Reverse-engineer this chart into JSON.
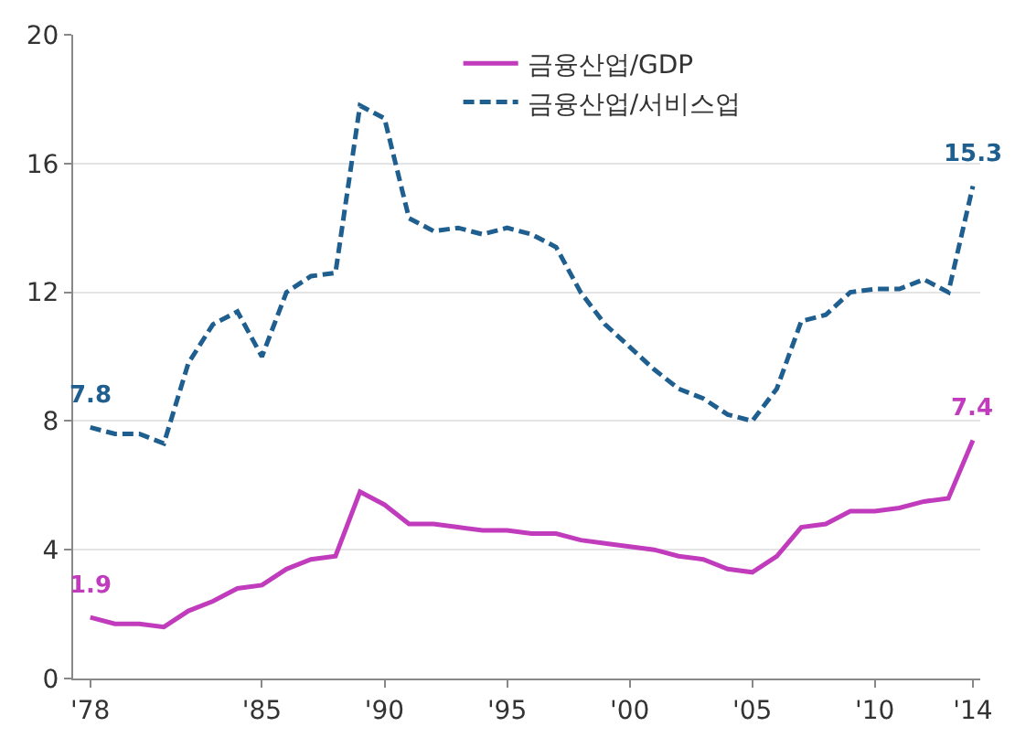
{
  "chart_data": {
    "type": "line",
    "x": [
      1978,
      1979,
      1980,
      1981,
      1982,
      1983,
      1984,
      1985,
      1986,
      1987,
      1988,
      1989,
      1990,
      1991,
      1992,
      1993,
      1994,
      1995,
      1996,
      1997,
      1998,
      1999,
      2000,
      2001,
      2002,
      2003,
      2004,
      2005,
      2006,
      2007,
      2008,
      2009,
      2010,
      2011,
      2012,
      2013,
      2014
    ],
    "series": [
      {
        "name": "금융산업/GDP",
        "color": "#c03cbc",
        "line_style": "solid",
        "values": [
          1.9,
          1.7,
          1.7,
          1.6,
          2.1,
          2.4,
          2.8,
          2.9,
          3.4,
          3.7,
          3.8,
          5.8,
          5.4,
          4.8,
          4.8,
          4.7,
          4.6,
          4.6,
          4.5,
          4.5,
          4.3,
          4.2,
          4.1,
          4.0,
          3.8,
          3.7,
          3.4,
          3.3,
          3.8,
          4.7,
          4.8,
          5.2,
          5.2,
          5.3,
          5.5,
          5.6,
          7.4
        ],
        "value_labels": [
          "1.9",
          null,
          null,
          null,
          null,
          null,
          null,
          null,
          null,
          null,
          null,
          null,
          null,
          null,
          null,
          null,
          null,
          null,
          null,
          null,
          null,
          null,
          null,
          null,
          null,
          null,
          null,
          null,
          null,
          null,
          null,
          null,
          null,
          null,
          null,
          null,
          "7.4"
        ]
      },
      {
        "name": "금융산업/서비스업",
        "color": "#1f5f8f",
        "line_style": "dashed",
        "values": [
          7.8,
          7.6,
          7.6,
          7.3,
          9.8,
          11.0,
          11.4,
          10.0,
          12.0,
          12.5,
          12.6,
          17.8,
          17.4,
          14.3,
          13.9,
          14.0,
          13.8,
          14.0,
          13.8,
          13.4,
          12.0,
          11.0,
          10.3,
          9.6,
          9.0,
          8.7,
          8.2,
          8.0,
          9.0,
          11.1,
          11.3,
          12.0,
          12.1,
          12.1,
          12.4,
          12.0,
          15.3
        ],
        "value_labels": [
          "7.8",
          null,
          null,
          null,
          null,
          null,
          null,
          null,
          null,
          null,
          null,
          null,
          null,
          null,
          null,
          null,
          null,
          null,
          null,
          null,
          null,
          null,
          null,
          null,
          null,
          null,
          null,
          null,
          null,
          null,
          null,
          null,
          null,
          null,
          null,
          null,
          "15.3"
        ]
      }
    ],
    "xlim": [
      1977.3,
      2014.3
    ],
    "xticks": [
      {
        "value": 1978,
        "label": "'78"
      },
      {
        "value": 1985,
        "label": "'85"
      },
      {
        "value": 1990,
        "label": "'90"
      },
      {
        "value": 1995,
        "label": "'95"
      },
      {
        "value": 2000,
        "label": "'00"
      },
      {
        "value": 2005,
        "label": "'05"
      },
      {
        "value": 2010,
        "label": "'10"
      },
      {
        "value": 2014,
        "label": "'14"
      }
    ],
    "ylim": [
      0,
      20
    ],
    "yticks": [
      0,
      4,
      8,
      12,
      16,
      20
    ],
    "grid": "y",
    "legend": "top right",
    "marker": "none"
  }
}
